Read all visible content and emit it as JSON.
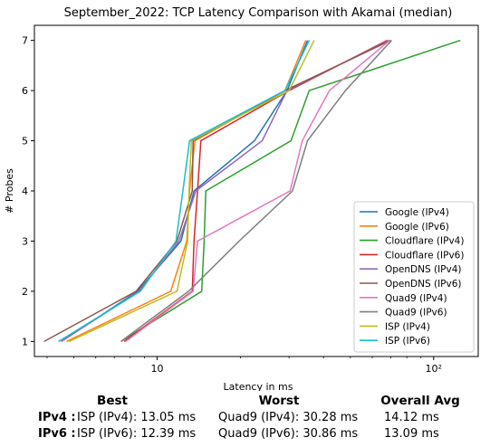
{
  "chart_data": {
    "type": "line",
    "title": "September_2022: TCP Latency Comparison with Akamai (median)",
    "xlabel": "Latency in ms",
    "ylabel": "# Probes",
    "xscale": "log",
    "xlim": [
      3.6,
      145
    ],
    "ylim": [
      0.7,
      7.3
    ],
    "xticks": [
      {
        "value": 10,
        "label": "10"
      },
      {
        "value": 100,
        "label": "10²"
      }
    ],
    "yticks": [
      1,
      2,
      3,
      4,
      5,
      6,
      7
    ],
    "grid": false,
    "legend_position": "lower-right",
    "series": [
      {
        "name": "Google (IPv4)",
        "color": "#1f77b4",
        "x": [
          4.5,
          8.5,
          12.2,
          13.6,
          22.5,
          29.5,
          35.0
        ],
        "y": [
          1,
          2,
          3,
          4,
          5,
          6,
          7
        ]
      },
      {
        "name": "Google (IPv6)",
        "color": "#ff7f0e",
        "x": [
          4.7,
          11.2,
          12.8,
          13.1,
          13.7,
          29.0,
          34.5
        ],
        "y": [
          1,
          2,
          3,
          4,
          5,
          6,
          7
        ]
      },
      {
        "name": "Cloudflare (IPv4)",
        "color": "#2ca02c",
        "x": [
          7.4,
          14.5,
          14.8,
          15.0,
          30.5,
          35.5,
          125.0
        ],
        "y": [
          1,
          2,
          3,
          4,
          5,
          6,
          7
        ]
      },
      {
        "name": "Cloudflare (IPv6)",
        "color": "#d62728",
        "x": [
          7.6,
          13.4,
          13.6,
          14.0,
          14.4,
          30.0,
          68.0
        ],
        "y": [
          1,
          2,
          3,
          4,
          5,
          6,
          7
        ]
      },
      {
        "name": "OpenDNS (IPv4)",
        "color": "#9467bd",
        "x": [
          4.5,
          8.6,
          12.0,
          13.8,
          24.0,
          29.5,
          69.0
        ],
        "y": [
          1,
          2,
          3,
          4,
          5,
          6,
          7
        ]
      },
      {
        "name": "OpenDNS (IPv6)",
        "color": "#8c564b",
        "x": [
          3.9,
          8.4,
          11.8,
          13.4,
          13.5,
          29.0,
          70.0
        ],
        "y": [
          1,
          2,
          3,
          4,
          5,
          6,
          7
        ]
      },
      {
        "name": "Quad9 (IPv4)",
        "color": "#e377c2",
        "x": [
          7.7,
          13.5,
          14.0,
          30.28,
          33.5,
          42.0,
          69.5
        ],
        "y": [
          1,
          2,
          3,
          4,
          5,
          6,
          7
        ]
      },
      {
        "name": "Quad9 (IPv6)",
        "color": "#7f7f7f",
        "x": [
          7.4,
          13.0,
          19.8,
          30.86,
          35.0,
          48.0,
          70.5
        ],
        "y": [
          1,
          2,
          3,
          4,
          5,
          6,
          7
        ]
      },
      {
        "name": "ISP (IPv4)",
        "color": "#bcbd22",
        "x": [
          4.8,
          11.8,
          12.9,
          13.05,
          13.3,
          30.0,
          37.0
        ],
        "y": [
          1,
          2,
          3,
          4,
          5,
          6,
          7
        ]
      },
      {
        "name": "ISP (IPv6)",
        "color": "#17becf",
        "x": [
          4.4,
          8.7,
          11.7,
          12.39,
          13.1,
          29.0,
          35.5
        ],
        "y": [
          1,
          2,
          3,
          4,
          5,
          6,
          7
        ]
      }
    ]
  },
  "stats": {
    "headers": {
      "best": "Best",
      "worst": "Worst",
      "avg": "Overall Avg"
    },
    "rows": [
      {
        "label": "IPv4 :",
        "best": "ISP (IPv4): 13.05 ms",
        "worst": "Quad9 (IPv4): 30.28 ms",
        "avg": "14.12 ms"
      },
      {
        "label": "IPv6 :",
        "best": "ISP (IPv6): 12.39 ms",
        "worst": "Quad9 (IPv6): 30.86 ms",
        "avg": "13.09 ms"
      }
    ]
  }
}
